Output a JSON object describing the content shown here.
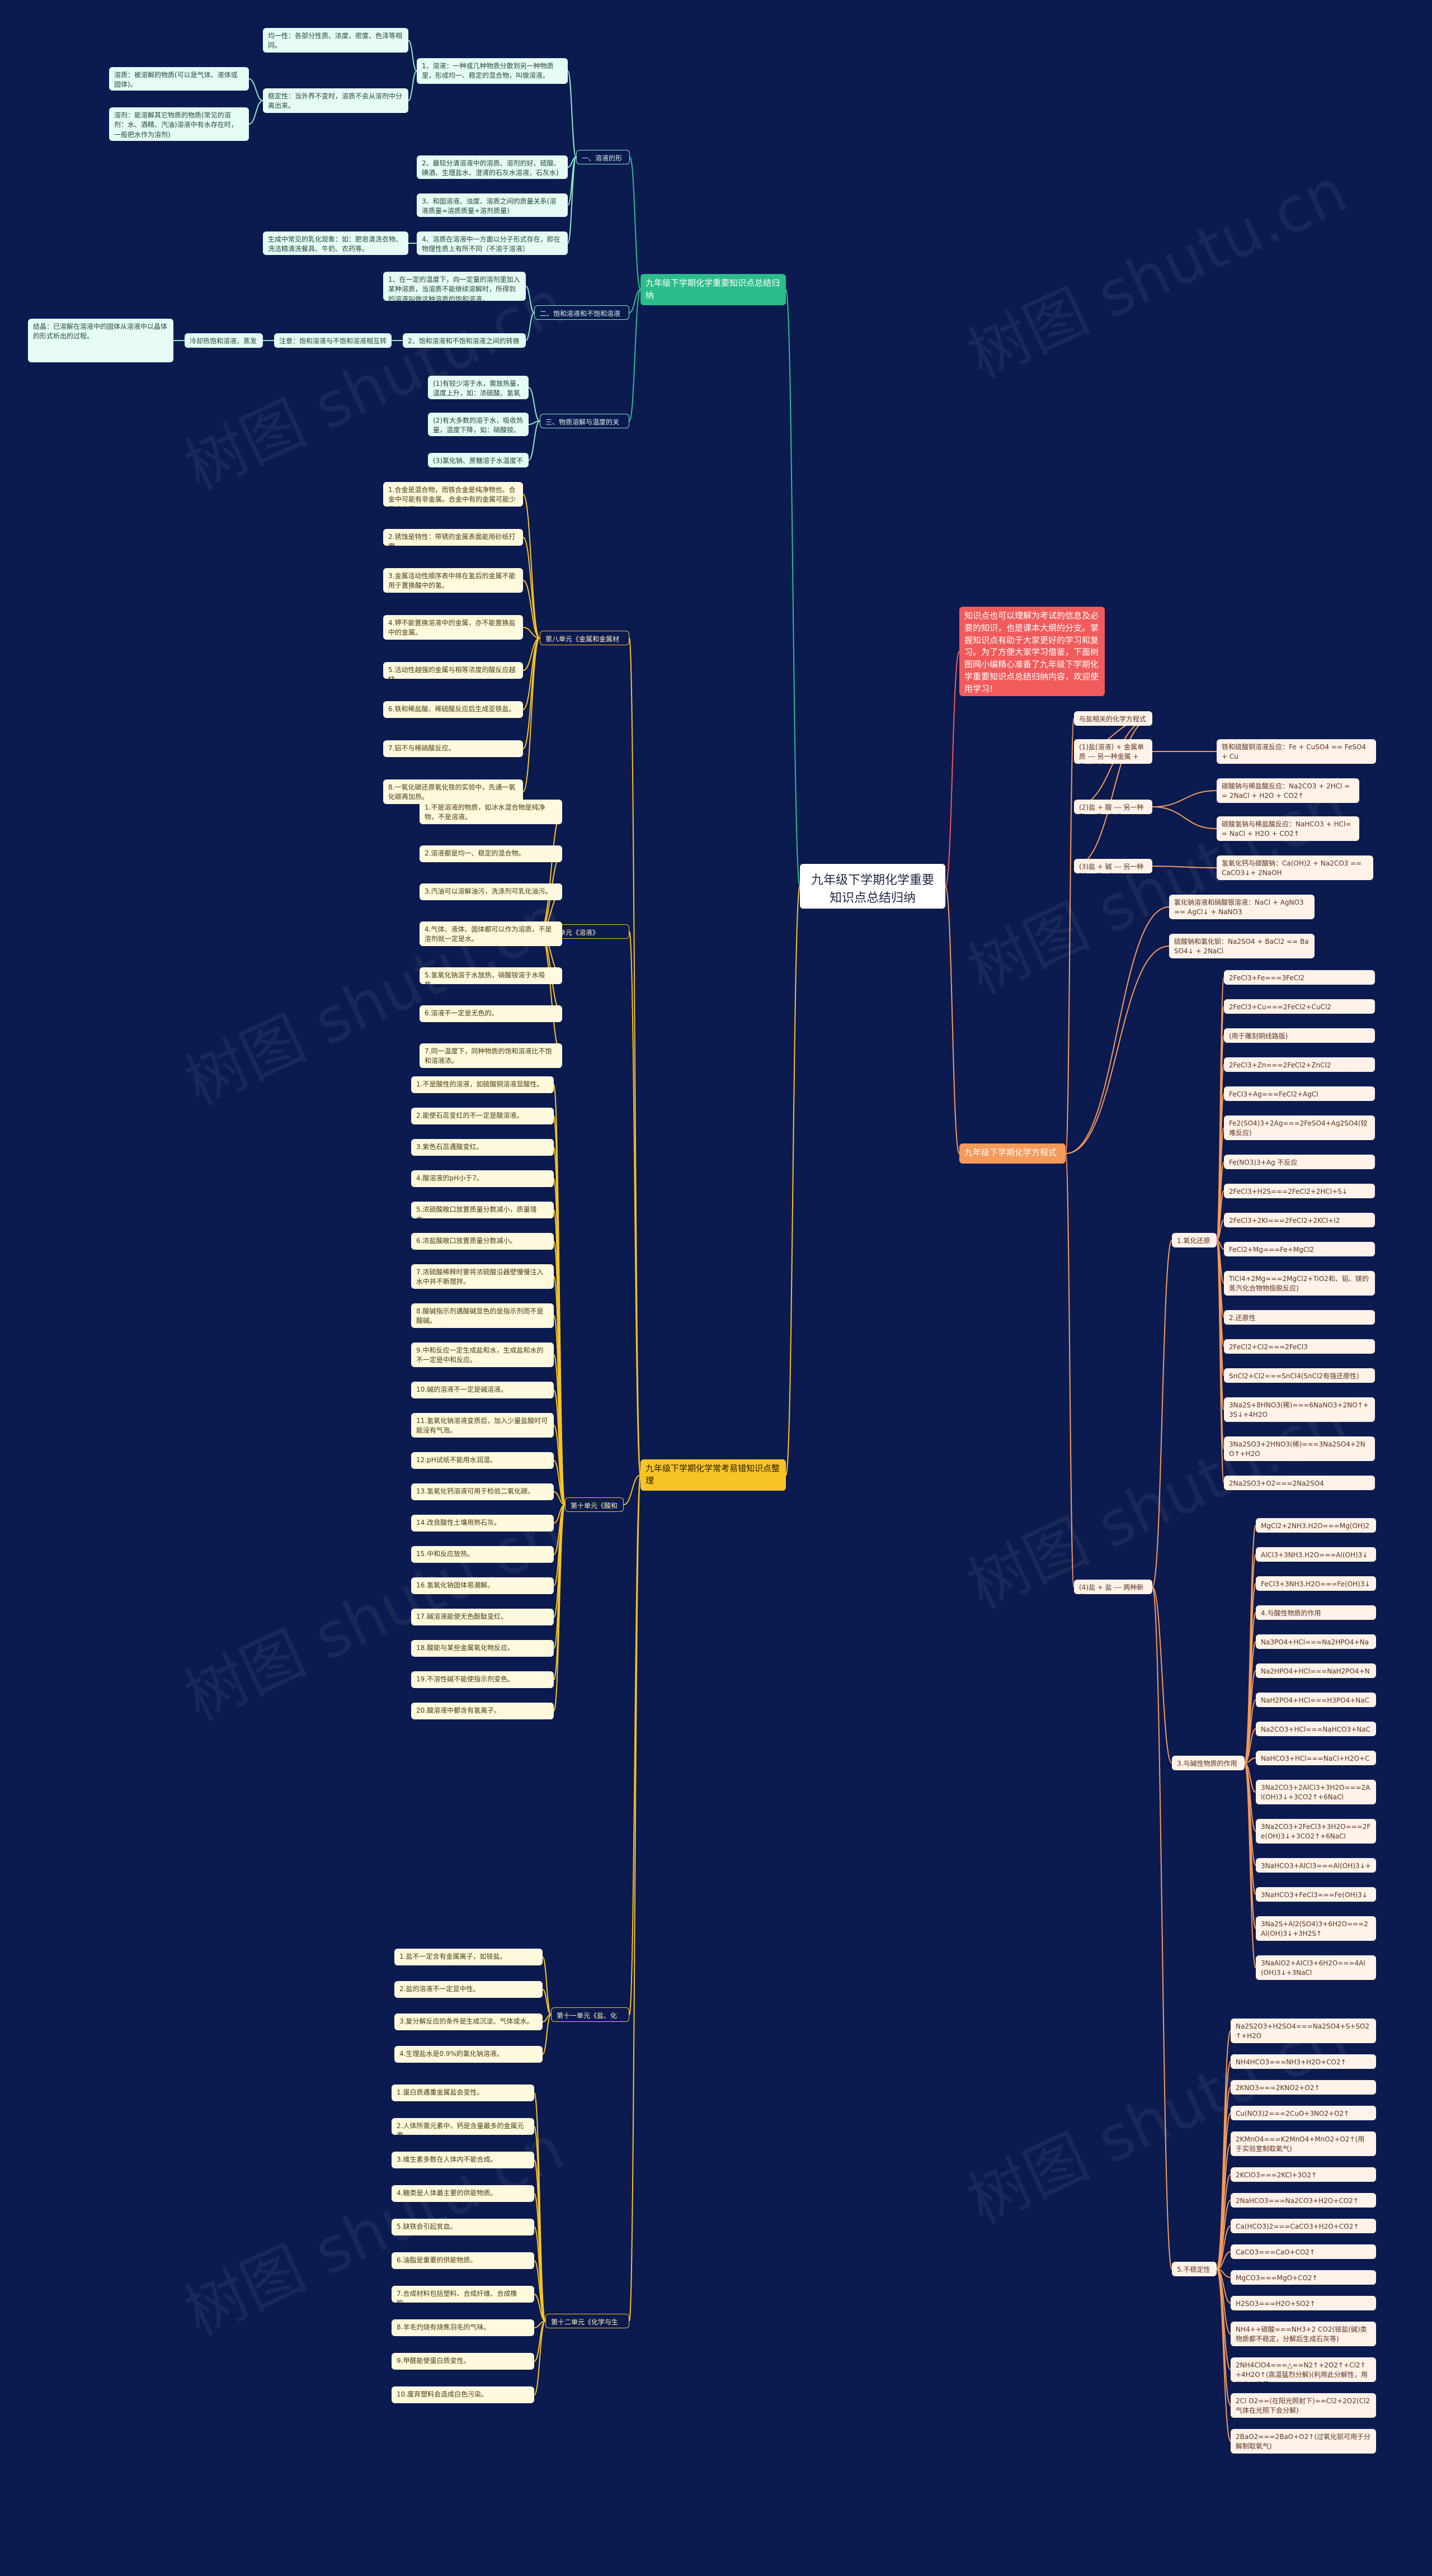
{
  "watermark": "树图 shutu.cn",
  "root": "九年级下学期化学重要知识点总结归纳",
  "intro": "知识点也可以理解为考试的信息及必要的知识，也是课本大纲的分支。掌握知识点有助于大家更好的学习和复习。为了方便大家学习借鉴，下面树图网小编精心准备了九年级下学期化学重要知识点总结归纳内容，欢迎使用学习!",
  "b1": {
    "title": "九年级下学期化学重要知识点总结归纳",
    "c1": {
      "label": "一、溶液的形成",
      "n1": "1、溶液：一种或几种物质分散到另一种物质里，形成均一、稳定的混合物，叫做溶液。",
      "n1a": "均一性：各部分性质、浓度、密度、色泽等相同。",
      "n1b": "稳定性：当外界不变时，溶质不会从溶剂中分离出来。",
      "n1c": "溶质：被溶解的物质(可以是气体、液体或固体)。",
      "n1d": "溶剂：能溶解其它物质的物质(常见的溶剂：水、酒精、汽油)溶液中有水存在时，一般把水作为溶剂)",
      "n2": "2、最较分清溶液中的溶质、溶剂的好、硫酸、碘酒、生理盐水、澄清的石灰水溶液、石灰水)",
      "n3": "3、和固溶液、浊度、溶质之间的质量关系(溶液质量=溶质质量+溶剂质量)",
      "n4": "4、溶质在溶液中一方面以分子形式存在，即在物理性质上有所不同（不溶于溶液）",
      "n4a": "生成中常见的乳化现象：如：肥皂清洗衣物、洗洁精清洗餐具、牛奶、农药等。"
    },
    "c2": {
      "label": "二、饱和溶液和不饱和溶液",
      "n1": "1、在一定的温度下，向一定量的溶剂里加入某种溶质，当溶质不能继续溶解时，所得到的溶液叫做这种溶质的饱和溶液。",
      "n2": "2、饱和溶液和不饱和溶液之间的转换",
      "n2a": "注意：饱和溶液与不饱和溶液相互转化",
      "n2b": "结晶：已溶解在溶液中的固体从溶液中以晶体的形式析出的过程。",
      "n2c": "冷却热饱和溶液、蒸发溶剂"
    },
    "c3": {
      "label": "三、物质溶解与温度的关系",
      "n1": "(1)有较少溶于水，需放热量，温度上升，如：浓硫酸、氢氧化钠等。",
      "n2": "(2)有大多数的溶于水，吸收热量，温度下降，如：硝酸铵、氯化铵等。",
      "n3": "(3)氯化钠、蔗糖溶于水温度不变。"
    }
  },
  "b2": {
    "title": "九年级下学期化学方程式",
    "c1": {
      "label": "与盐相关的化学方程式",
      "r1": "(1)盐(溶液) + 金属单质 --- 另一种金属 + 另一种盐",
      "r1a": "铁和硫酸铜溶液反应：Fe + CuSO4 == FeSO4 + Cu",
      "r2": "(2)盐 + 酸 --- 另一种酸 + 另一种盐",
      "r2a": "碳酸钠与稀盐酸反应：Na2CO3 + 2HCl == 2NaCl + H2O + CO2↑",
      "r2b": "碳酸氢钠与稀盐酸反应：NaHCO3 + HCl== NaCl + H2O + CO2↑",
      "r3": "(3)盐 + 碱 --- 另一种碱 + 另一种盐",
      "r3a": "氢氧化钙与碳酸钠：Ca(OH)2 + Na2CO3 == CaCO3↓+ 2NaOH",
      "r4": "(4)盐 + 盐 --- 两种新盐",
      "r4a": "氯化钠溶液和硝酸银溶液：NaCl + AgNO3 == AgCl↓ + NaNO3",
      "r4b": "硫酸钠和氯化钡：Na2SO4 + BaCl2 == BaSO4↓ + 2NaCl"
    },
    "c2": {
      "label": "1.氧化还原",
      "items": [
        "2FeCl3+Fe===3FeCl2",
        "2FeCl3+Cu===2FeCl2+CuCl2",
        "(用于雕刻铜线路版)",
        "2FeCl3+Zn===2FeCl2+ZnCl2",
        "FeCl3+Ag===FeCl2+AgCl",
        "Fe2(SO4)3+2Ag===2FeSO4+Ag2SO4(较难反应)",
        "Fe(NO3)3+Ag 不反应",
        "2FeCl3+H2S===2FeCl2+2HCl+S↓",
        "2FeCl3+2KI===2FeCl2+2KCl+I2",
        "FeCl2+Mg===Fe+MgCl2",
        "TiCl4+2Mg===2MgCl2+TiO2和、铝、镁的蒸汽化合物物极脱反应)",
        "2.还原性",
        "2FeCl2+Cl2===2FeCl3",
        "SnCl2+Cl2===SnCl4(SnCl2有强还原性)",
        "3Na2S+8HNO3(稀)===6NaNO3+2NO↑+3S↓+4H2O",
        "3Na2SO3+2HNO3(稀)===3Na2SO4+2NO↑+H2O",
        "2Na2SO3+O2===2Na2SO4"
      ]
    },
    "c3": {
      "label": "3.与碱性物质的作用",
      "items": [
        "MgCl2+2NH3.H2O===Mg(OH)2↓+NH4Cl",
        "AlCl3+3NH3.H2O===Al(OH)3↓+3NH4Cl",
        "FeCl3+3NH3.H2O===Fe(OH)3↓+3NH4Cl",
        "4.与酸性物质的作用",
        "Na3PO4+HCl===Na2HPO4+NaCl",
        "Na2HPO4+HCl===NaH2PO4+NaCl",
        "NaH2PO4+HCl===H3PO4+NaCl",
        "Na2CO3+HCl===NaHCO3+NaCl",
        "NaHCO3+HCl===NaCl+H2O+CO2↑",
        "3Na2CO3+2AlCl3+3H2O===2Al(OH)3↓+3CO2↑+6NaCl",
        "3Na2CO3+2FeCl3+3H2O===2Fe(OH)3↓+3CO2↑+6NaCl",
        "3NaHCO3+AlCl3===Al(OH)3↓+3CO2↑",
        "3NaHCO3+FeCl3===Fe(OH)3↓+3CO2↑",
        "3Na2S+Al2(SO4)3+6H2O===2Al(OH)3↓+3H2S↑",
        "3NaAlO2+AlCl3+6H2O===4Al(OH)3↓+3NaCl"
      ]
    },
    "c4": {
      "label": "5.不稳定性",
      "items": [
        "Na2S2O3+H2SO4===Na2SO4+S+SO2↑+H2O",
        "NH4HCO3===NH3+H2O+CO2↑",
        "2KNO3===2KNO2+O2↑",
        "Cu(NO3)2===2CuO+3NO2+O2↑",
        "2KMnO4===K2MnO4+MnO2+O2↑(用于实验室制取氧气)",
        "2KClO3===2KCl+3O2↑",
        "2NaHCO3===Na2CO3+H2O+CO2↑",
        "Ca(HCO3)2===CaCO3+H2O+CO2↑",
        "CaCO3===CaO+CO2↑",
        "MgCO3===MgO+CO2↑",
        "H2SO3===H2O+SO2↑",
        "NH4++碳酸===NH3+2 CO2(铵盐(碱)类物质都不稳定，分解后生成石灰等)",
        "2NH4ClO4===△==N2↑+2O2↑+Cl2↑+4H2O↑(高温猛烈分解)(利用此分解性，用于发射卫星)",
        "2Cl O2==(在阳光照射下)==Cl2+2O2(Cl2气体在光照下会分解)",
        "2BaO2===2BaO+O2↑(过氧化钡可用于分解制取氧气)"
      ]
    }
  },
  "b3": {
    "title": "九年级下学期化学常考易错知识点整理",
    "u8": {
      "label": "第八单元《金属和金属材料》",
      "items": [
        "1.合金是混合物，而铁合金是纯净物也。合金中可能有非金属。合金中有的金属可能少量的含量。",
        "2.锈蚀是特性：带锈的金属表面能用砂纸打磨。",
        "3.金属活动性顺序表中排在氢后的金属不能用于置换酸中的氢。",
        "4.钾不能置换溶液中的金属，亦不能置换盐中的金属。",
        "5.活动性越强的金属与相等浓度的酸反应越快。",
        "6.铁和稀盐酸、稀硫酸反应后生成亚铁盐。",
        "7.铝不与稀硝酸反应。",
        "8.一氧化碳还原氧化铁的实验中，先通一氧化碳再加热。"
      ]
    },
    "u9": {
      "label": "第九单元《溶液》",
      "items": [
        "1.不是溶液的物质，如冰水混合物是纯净物，不是溶液。",
        "2.溶液都是均一、稳定的混合物。",
        "3.汽油可以溶解油污，洗涤剂可乳化油污。",
        "4.气体、液体、固体都可以作为溶质，不是溶剂就一定是水。",
        "5.氢氧化钠溶于水放热，硝酸铵溶于水吸热。",
        "6.溶液不一定是无色的。",
        "7.同一温度下，同种物质的饱和溶液比不饱和溶液浓。"
      ]
    },
    "u10": {
      "label": "第十单元《酸和碱》",
      "items": [
        "1.不是酸性的溶液，如硫酸铜溶液显酸性。",
        "2.能使石蕊变红的不一定是酸溶液。",
        "3.紫色石蕊遇酸变红。",
        "4.酸溶液的pH小于7。",
        "5.浓硫酸敞口放置质量分数减小，质量增大。",
        "6.浓盐酸敞口放置质量分数减小。",
        "7.浓硫酸稀释时要将浓硫酸沿器壁慢慢注入水中并不断搅拌。",
        "8.酸碱指示剂遇酸碱显色的是指示剂而不是酸碱。",
        "9.中和反应一定生成盐和水，生成盐和水的不一定是中和反应。",
        "10.碱的溶液不一定是碱溶液。",
        "11.氢氧化钠溶液变质后，加入少量盐酸时可能没有气泡。",
        "12.pH试纸不能用水润湿。",
        "13.氢氧化钙溶液可用于检验二氧化碳。",
        "14.改良酸性土壤用熟石灰。",
        "15.中和反应放热。",
        "16.氢氧化钠固体易潮解。",
        "17.碱溶液能使无色酚酞变红。",
        "18.酸能与某些金属氧化物反应。",
        "19.不溶性碱不能使指示剂变色。",
        "20.酸溶液中都含有氢离子。"
      ]
    },
    "u11": {
      "label": "第十一单元《盐、化肥》",
      "items": [
        "1.盐不一定含有金属离子，如铵盐。",
        "2.盐的溶液不一定显中性。",
        "3.复分解反应的条件是生成沉淀、气体或水。",
        "4.生理盐水是0.9%的氯化钠溶液。"
      ]
    },
    "u12": {
      "label": "第十二单元《化学与生活》",
      "items": [
        "1.蛋白质遇重金属盐会变性。",
        "2.人体所需元素中，钙是含量最多的金属元素。",
        "3.维生素多数在人体内不能合成。",
        "4.糖类是人体最主要的供能物质。",
        "5.缺铁会引起贫血。",
        "6.油脂是重要的供能物质。",
        "7.合成材料包括塑料、合成纤维、合成橡胶。",
        "8.羊毛灼烧有烧焦羽毛的气味。",
        "9.甲醛能使蛋白质变性。",
        "10.废弃塑料会造成白色污染。"
      ]
    }
  }
}
